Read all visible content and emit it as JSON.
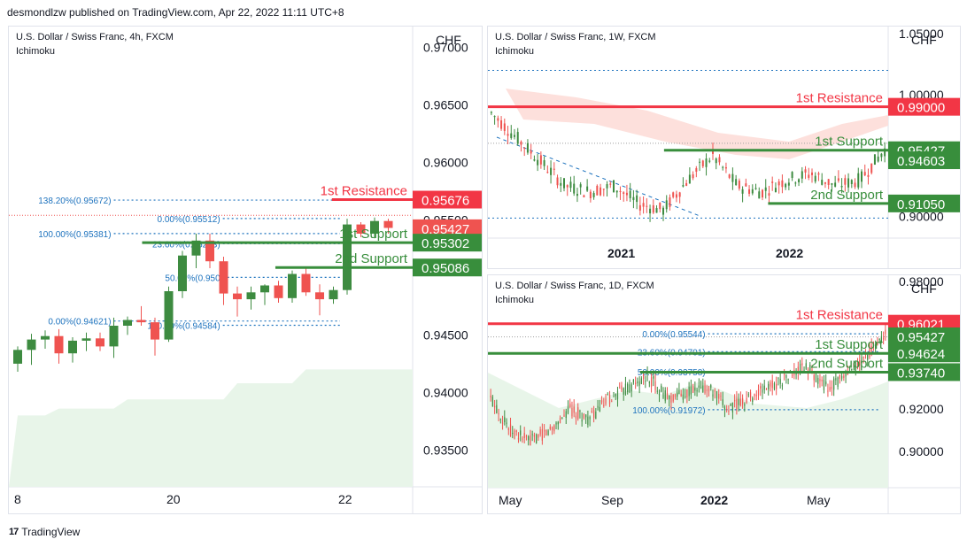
{
  "header": {
    "publisher_line": "desmondlzw published on TradingView.com, Apr 22, 2022 11:11 UTC+8"
  },
  "footer": {
    "brand": "TradingView",
    "logo_glyph": "17"
  },
  "colors": {
    "up": "#3d8b40",
    "down": "#ef5350",
    "support": "#388e3c",
    "resistance": "#f23645",
    "fib": "#1e73be",
    "cloud": "#e8f5e9",
    "cloud_bear": "#fde0dc"
  },
  "chart_data": [
    {
      "id": "4h",
      "type": "candlestick",
      "title": "U.S. Dollar / Swiss Franc, 4h, FXCM",
      "indicator": "Ichimoku",
      "unit": "CHF",
      "ylim": [
        0.9318,
        0.9718
      ],
      "y_ticks": [
        "0.97000",
        "0.96500",
        "0.96000",
        "0.95500",
        "0.94500",
        "0.94000",
        "0.93500"
      ],
      "x_ticks": [
        "8",
        "20",
        "22"
      ],
      "candles": [
        [
          0.9425,
          0.944,
          0.9418,
          0.9437
        ],
        [
          0.9437,
          0.9451,
          0.9424,
          0.9446
        ],
        [
          0.9446,
          0.9454,
          0.9438,
          0.9449
        ],
        [
          0.9449,
          0.9455,
          0.9425,
          0.9434
        ],
        [
          0.9434,
          0.9448,
          0.9426,
          0.9445
        ],
        [
          0.9445,
          0.9452,
          0.9436,
          0.9447
        ],
        [
          0.9447,
          0.9452,
          0.9436,
          0.944
        ],
        [
          0.944,
          0.9465,
          0.943,
          0.9458
        ],
        [
          0.9458,
          0.9466,
          0.945,
          0.9463
        ],
        [
          0.9463,
          0.9475,
          0.9458,
          0.9461
        ],
        [
          0.9461,
          0.9465,
          0.9432,
          0.9446
        ],
        [
          0.9446,
          0.9492,
          0.9444,
          0.9488
        ],
        [
          0.9488,
          0.9523,
          0.9482,
          0.9519
        ],
        [
          0.9519,
          0.9538,
          0.9508,
          0.9532
        ],
        [
          0.9532,
          0.9538,
          0.9508,
          0.9514
        ],
        [
          0.9514,
          0.9518,
          0.9476,
          0.9486
        ],
        [
          0.9486,
          0.9492,
          0.9466,
          0.9481
        ],
        [
          0.9481,
          0.9492,
          0.9472,
          0.9487
        ],
        [
          0.9487,
          0.9494,
          0.9476,
          0.9493
        ],
        [
          0.9493,
          0.9497,
          0.9478,
          0.9482
        ],
        [
          0.9482,
          0.9506,
          0.9478,
          0.9503
        ],
        [
          0.9503,
          0.9509,
          0.9484,
          0.9487
        ],
        [
          0.9487,
          0.9494,
          0.9467,
          0.9481
        ],
        [
          0.9481,
          0.9492,
          0.9477,
          0.9489
        ],
        [
          0.9489,
          0.9551,
          0.9485,
          0.9546
        ],
        [
          0.9546,
          0.9548,
          0.9535,
          0.9538
        ],
        [
          0.9538,
          0.9552,
          0.9534,
          0.9549
        ],
        [
          0.9549,
          0.9551,
          0.9538,
          0.9543
        ]
      ],
      "cloud_top": [
        0.938,
        0.938,
        0.938,
        0.9386,
        0.9386,
        0.9386,
        0.9386,
        0.9386,
        0.9394,
        0.9394,
        0.9394,
        0.9394,
        0.9394,
        0.9394,
        0.9394,
        0.9394,
        0.9408,
        0.9408,
        0.9408,
        0.9408,
        0.9408,
        0.942,
        0.942,
        0.942,
        0.942,
        0.942,
        0.942,
        0.942
      ],
      "levels": [
        {
          "value": 0.95676,
          "label": "1st Resistance",
          "kind": "resistance",
          "start": 0.8
        },
        {
          "value": 0.95302,
          "label": "1st Support",
          "kind": "support",
          "start": 0.33
        },
        {
          "value": 0.95086,
          "label": "2nd Support",
          "kind": "support",
          "start": 0.66
        }
      ],
      "price_tags": [
        {
          "value": 0.95676,
          "text": "0.95676",
          "kind": "resistance"
        },
        {
          "value": 0.95427,
          "text": "0.95427",
          "kind": "last"
        },
        {
          "value": 0.95302,
          "text": "0.95302",
          "kind": "support"
        },
        {
          "value": 0.95086,
          "text": "0.95086",
          "kind": "support"
        }
      ],
      "fibs": [
        {
          "value": 0.95672,
          "text": "138.20%(0.95672)",
          "x0": 0.26,
          "x1": 0.82
        },
        {
          "value": 0.95512,
          "text": "0.00%(0.95512)",
          "x0": 0.53,
          "x1": 0.82
        },
        {
          "value": 0.95381,
          "text": "100.00%(0.95381)",
          "x0": 0.26,
          "x1": 0.82
        },
        {
          "value": 0.95293,
          "text": "23.60%(0.95293)",
          "x0": 0.53,
          "x1": 0.82
        },
        {
          "value": 0.95,
          "text": "50.00%(0.950",
          "x0": 0.53,
          "x1": 0.82
        },
        {
          "value": 0.94621,
          "text": "0.00%(0.94621)",
          "x0": 0.26,
          "x1": 0.82
        },
        {
          "value": 0.94584,
          "text": "100.00%(0.94584)",
          "x0": 0.53,
          "x1": 0.82
        }
      ]
    },
    {
      "id": "1w",
      "type": "candlestick",
      "title": "U.S. Dollar / Swiss Franc, 1W, FXCM",
      "indicator": "Ichimoku",
      "unit": "CHF",
      "ylim": [
        0.882,
        1.056
      ],
      "y_ticks": [
        "1.05000",
        "1.00000",
        "0.90000"
      ],
      "x_ticks": [
        "2021",
        "2022"
      ],
      "levels": [
        {
          "value": 0.99,
          "label": "1st Resistance",
          "kind": "resistance",
          "start": 0.0
        },
        {
          "value": 0.95427,
          "label": "1st Support",
          "kind": "support",
          "start": 0.44
        },
        {
          "value": 0.9105,
          "label": "2nd Support",
          "kind": "support",
          "start": 0.7
        }
      ],
      "price_tags": [
        {
          "value": 0.99,
          "text": "0.99000",
          "kind": "resistance"
        },
        {
          "value": 0.95427,
          "text": "0.95427",
          "kind": "support"
        },
        {
          "value": 0.94603,
          "text": "0.94603",
          "kind": "support"
        },
        {
          "value": 0.9105,
          "text": "0.91050",
          "kind": "support"
        }
      ]
    },
    {
      "id": "1d",
      "type": "candlestick",
      "title": "U.S. Dollar / Swiss Franc, 1D, FXCM",
      "indicator": "Ichimoku",
      "unit": "CHF",
      "ylim": [
        0.883,
        0.983
      ],
      "y_ticks": [
        "0.98000",
        "0.92000",
        "0.90000"
      ],
      "x_ticks": [
        "May",
        "Sep",
        "2022",
        "May"
      ],
      "levels": [
        {
          "value": 0.96021,
          "label": "1st Resistance",
          "kind": "resistance",
          "start": 0.0
        },
        {
          "value": 0.94624,
          "label": "1st Support",
          "kind": "support",
          "start": 0.0
        },
        {
          "value": 0.9374,
          "label": "2nd Support",
          "kind": "support",
          "start": 0.38
        }
      ],
      "price_tags": [
        {
          "value": 0.96021,
          "text": "0.96021",
          "kind": "resistance"
        },
        {
          "value": 0.95427,
          "text": "0.95427",
          "kind": "support"
        },
        {
          "value": 0.94624,
          "text": "0.94624",
          "kind": "support"
        },
        {
          "value": 0.9374,
          "text": "0.93740",
          "kind": "support"
        }
      ],
      "fibs": [
        {
          "value": 0.95544,
          "text": "0.00%(0.95544)",
          "x0": 0.55,
          "x1": 0.98
        },
        {
          "value": 0.94701,
          "text": "23.60%(0.94701)",
          "x0": 0.55,
          "x1": 0.98
        },
        {
          "value": 0.93758,
          "text": "50.00%(0.93758)",
          "x0": 0.55,
          "x1": 0.98
        },
        {
          "value": 0.91972,
          "text": "100.00%(0.91972)",
          "x0": 0.55,
          "x1": 0.98
        }
      ]
    }
  ]
}
